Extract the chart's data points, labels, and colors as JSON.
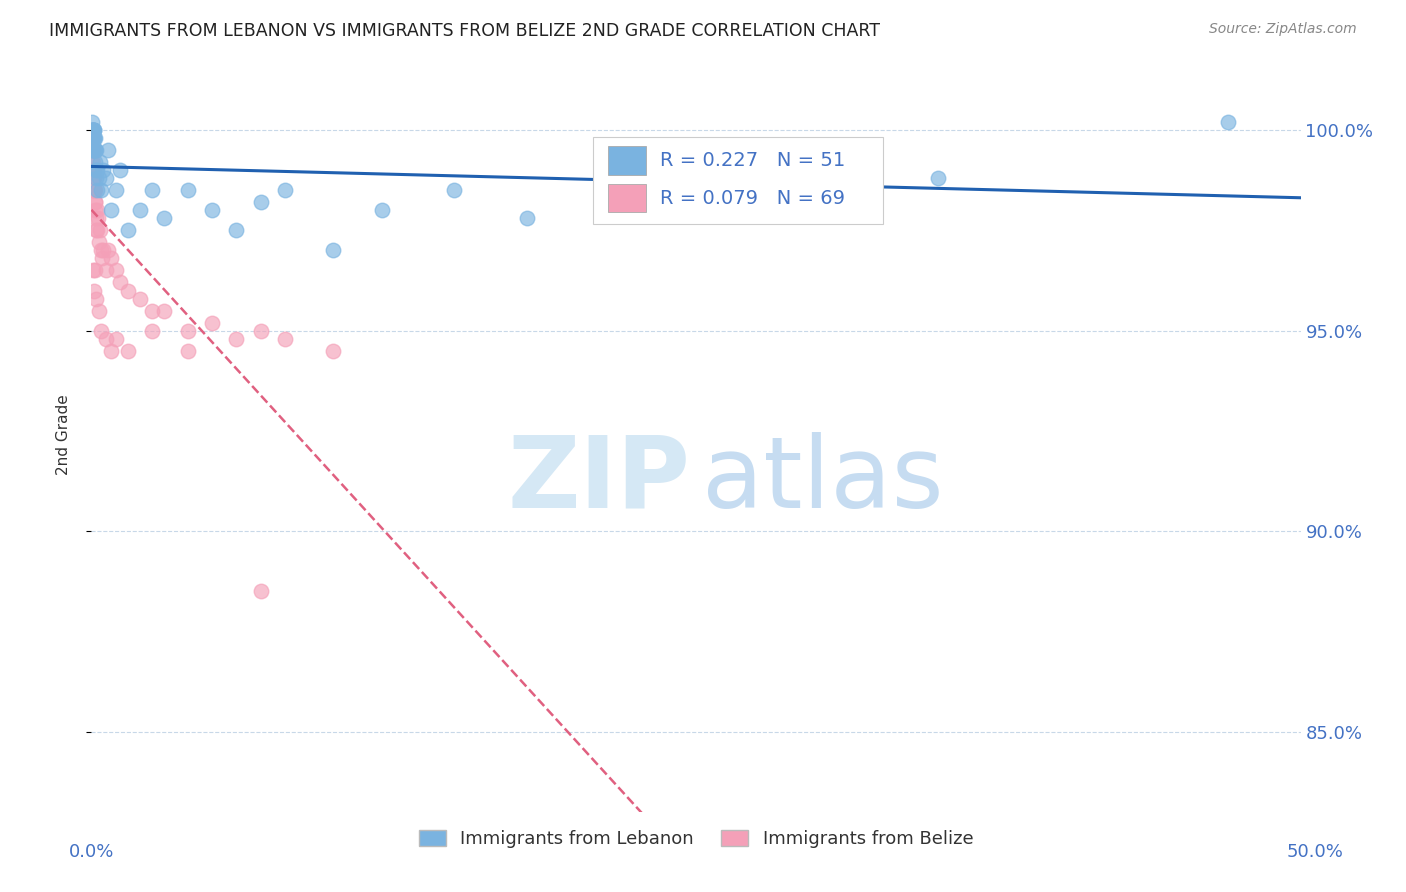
{
  "title": "IMMIGRANTS FROM LEBANON VS IMMIGRANTS FROM BELIZE 2ND GRADE CORRELATION CHART",
  "source": "Source: ZipAtlas.com",
  "ylabel": "2nd Grade",
  "xlim": [
    0.0,
    50.0
  ],
  "ylim": [
    83.0,
    101.8
  ],
  "y_tick_vals": [
    85.0,
    90.0,
    95.0,
    100.0
  ],
  "y_tick_labels": [
    "85.0%",
    "90.0%",
    "95.0%",
    "100.0%"
  ],
  "legend_label1": "Immigrants from Lebanon",
  "legend_label2": "Immigrants from Belize",
  "R_lebanon": 0.227,
  "N_lebanon": 51,
  "R_belize": 0.079,
  "N_belize": 69,
  "color_lebanon": "#7ab3e0",
  "color_belize": "#f4a0b8",
  "trendline_lebanon": "#2060b0",
  "trendline_belize": "#e06080",
  "grid_color": "#c8d8e8",
  "watermark_zip_color": "#d5e8f5",
  "watermark_atlas_color": "#b8d4ee",
  "lebanon_x": [
    0.02,
    0.03,
    0.04,
    0.04,
    0.05,
    0.05,
    0.06,
    0.07,
    0.07,
    0.08,
    0.08,
    0.09,
    0.1,
    0.1,
    0.11,
    0.12,
    0.12,
    0.13,
    0.14,
    0.15,
    0.16,
    0.17,
    0.18,
    0.2,
    0.22,
    0.25,
    0.3,
    0.35,
    0.4,
    0.5,
    0.6,
    0.7,
    0.8,
    1.0,
    1.2,
    1.5,
    2.0,
    2.5,
    3.0,
    4.0,
    5.0,
    6.0,
    7.0,
    8.0,
    10.0,
    12.0,
    15.0,
    18.0,
    22.0,
    35.0,
    47.0
  ],
  "lebanon_y": [
    100.0,
    99.8,
    100.2,
    99.5,
    100.0,
    99.8,
    100.0,
    100.0,
    99.5,
    100.0,
    99.8,
    99.5,
    100.0,
    99.8,
    99.5,
    99.8,
    100.0,
    99.5,
    99.8,
    99.5,
    99.2,
    99.0,
    98.8,
    99.5,
    98.5,
    99.0,
    98.8,
    99.2,
    98.5,
    99.0,
    98.8,
    99.5,
    98.0,
    98.5,
    99.0,
    97.5,
    98.0,
    98.5,
    97.8,
    98.5,
    98.0,
    97.5,
    98.2,
    98.5,
    97.0,
    98.0,
    98.5,
    97.8,
    98.5,
    98.8,
    100.2
  ],
  "belize_x": [
    0.02,
    0.02,
    0.03,
    0.03,
    0.04,
    0.04,
    0.04,
    0.05,
    0.05,
    0.05,
    0.06,
    0.06,
    0.06,
    0.07,
    0.07,
    0.07,
    0.08,
    0.08,
    0.08,
    0.09,
    0.09,
    0.1,
    0.1,
    0.1,
    0.11,
    0.11,
    0.12,
    0.13,
    0.14,
    0.15,
    0.16,
    0.18,
    0.2,
    0.22,
    0.25,
    0.28,
    0.3,
    0.35,
    0.4,
    0.45,
    0.5,
    0.6,
    0.7,
    0.8,
    1.0,
    1.2,
    1.5,
    2.0,
    2.5,
    3.0,
    4.0,
    5.0,
    6.0,
    7.0,
    8.0,
    10.0,
    0.08,
    0.12,
    0.15,
    0.2,
    0.3,
    0.4,
    0.6,
    0.8,
    1.0,
    1.5,
    2.5,
    4.0,
    7.0
  ],
  "belize_y": [
    99.5,
    99.8,
    99.5,
    100.0,
    99.2,
    99.5,
    99.8,
    99.0,
    99.5,
    99.8,
    99.0,
    99.5,
    99.2,
    99.0,
    99.5,
    98.8,
    98.5,
    99.0,
    99.5,
    98.5,
    99.0,
    98.8,
    99.0,
    98.5,
    98.8,
    99.0,
    98.5,
    98.2,
    98.5,
    98.0,
    98.2,
    97.8,
    97.5,
    98.0,
    97.5,
    97.8,
    97.2,
    97.5,
    97.0,
    96.8,
    97.0,
    96.5,
    97.0,
    96.8,
    96.5,
    96.2,
    96.0,
    95.8,
    95.5,
    95.5,
    95.0,
    95.2,
    94.8,
    95.0,
    94.8,
    94.5,
    96.5,
    96.0,
    96.5,
    95.8,
    95.5,
    95.0,
    94.8,
    94.5,
    94.8,
    94.5,
    95.0,
    94.5,
    88.5
  ]
}
